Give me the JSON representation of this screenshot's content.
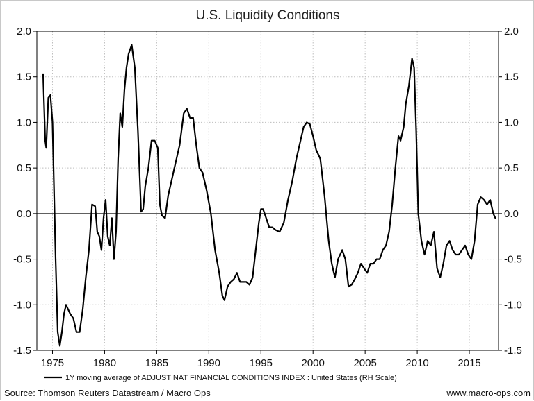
{
  "chart_data": {
    "type": "line",
    "title": "U.S. Liquidity Conditions",
    "ylim": [
      -1.5,
      2.0
    ],
    "xlim": [
      1973.5,
      2017.8
    ],
    "y_ticks": [
      "2.0",
      "1.5",
      "1.0",
      "0.5",
      "0.0",
      "-0.5",
      "-1.0",
      "-1.5"
    ],
    "y_tick_values": [
      2.0,
      1.5,
      1.0,
      0.5,
      0.0,
      -0.5,
      -1.0,
      -1.5
    ],
    "x_ticks": [
      "1975",
      "1980",
      "1985",
      "1990",
      "1995",
      "2000",
      "2005",
      "2010",
      "2015"
    ],
    "x_tick_values": [
      1975,
      1980,
      1985,
      1990,
      1995,
      2000,
      2005,
      2010,
      2015
    ],
    "grid": true,
    "legend_position": "bottom",
    "series": [
      {
        "name": "1Y moving average of ADJUST NAT FINANCIAL CONDITIONS INDEX : United States (RH Scale)",
        "color": "#000000",
        "x": [
          1974.1,
          1974.3,
          1974.4,
          1974.6,
          1974.8,
          1975.0,
          1975.1,
          1975.3,
          1975.5,
          1975.7,
          1975.9,
          1976.1,
          1976.3,
          1976.5,
          1976.7,
          1977.0,
          1977.3,
          1977.6,
          1977.9,
          1978.2,
          1978.5,
          1978.8,
          1979.1,
          1979.3,
          1979.5,
          1979.7,
          1979.9,
          1980.1,
          1980.3,
          1980.5,
          1980.7,
          1980.9,
          1981.1,
          1981.3,
          1981.5,
          1981.7,
          1981.9,
          1982.1,
          1982.3,
          1982.6,
          1982.9,
          1983.2,
          1983.5,
          1983.7,
          1983.9,
          1984.2,
          1984.5,
          1984.8,
          1985.1,
          1985.3,
          1985.5,
          1985.8,
          1986.1,
          1986.4,
          1986.8,
          1987.2,
          1987.6,
          1987.9,
          1988.2,
          1988.5,
          1988.8,
          1989.1,
          1989.4,
          1989.8,
          1990.2,
          1990.6,
          1991.0,
          1991.3,
          1991.5,
          1991.8,
          1992.1,
          1992.4,
          1992.7,
          1993.0,
          1993.3,
          1993.6,
          1993.9,
          1994.2,
          1994.5,
          1994.8,
          1995.0,
          1995.2,
          1995.5,
          1995.8,
          1996.1,
          1996.4,
          1996.8,
          1997.2,
          1997.6,
          1998.0,
          1998.4,
          1998.8,
          1999.1,
          1999.4,
          1999.7,
          2000.0,
          2000.3,
          2000.7,
          2001.1,
          2001.5,
          2001.8,
          2002.1,
          2002.4,
          2002.8,
          2003.1,
          2003.4,
          2003.7,
          2004.0,
          2004.3,
          2004.6,
          2004.9,
          2005.2,
          2005.5,
          2005.8,
          2006.1,
          2006.4,
          2006.7,
          2007.0,
          2007.3,
          2007.6,
          2007.9,
          2008.2,
          2008.4,
          2008.7,
          2008.9,
          2009.2,
          2009.5,
          2009.7,
          2009.9,
          2010.1,
          2010.4,
          2010.7,
          2011.0,
          2011.3,
          2011.6,
          2011.9,
          2012.2,
          2012.5,
          2012.8,
          2013.1,
          2013.4,
          2013.7,
          2014.0,
          2014.3,
          2014.6,
          2014.9,
          2015.2,
          2015.5,
          2015.8,
          2016.1,
          2016.4,
          2016.7,
          2017.0,
          2017.3,
          2017.5
        ],
        "values": [
          1.53,
          0.8,
          0.72,
          1.27,
          1.3,
          1.0,
          0.5,
          -0.5,
          -1.3,
          -1.45,
          -1.3,
          -1.1,
          -1.0,
          -1.05,
          -1.1,
          -1.15,
          -1.3,
          -1.3,
          -1.05,
          -0.7,
          -0.4,
          0.1,
          0.08,
          -0.2,
          -0.25,
          -0.4,
          -0.05,
          0.15,
          -0.25,
          -0.35,
          -0.05,
          -0.5,
          -0.2,
          0.6,
          1.1,
          0.95,
          1.35,
          1.6,
          1.75,
          1.85,
          1.6,
          0.9,
          0.02,
          0.05,
          0.3,
          0.5,
          0.8,
          0.8,
          0.72,
          0.1,
          -0.02,
          -0.05,
          0.2,
          0.35,
          0.55,
          0.75,
          1.1,
          1.15,
          1.05,
          1.05,
          0.75,
          0.5,
          0.45,
          0.25,
          0.0,
          -0.4,
          -0.65,
          -0.9,
          -0.95,
          -0.8,
          -0.75,
          -0.72,
          -0.65,
          -0.75,
          -0.75,
          -0.75,
          -0.78,
          -0.7,
          -0.4,
          -0.1,
          0.05,
          0.05,
          -0.05,
          -0.15,
          -0.15,
          -0.18,
          -0.2,
          -0.1,
          0.15,
          0.35,
          0.6,
          0.8,
          0.95,
          1.0,
          0.98,
          0.85,
          0.7,
          0.6,
          0.2,
          -0.3,
          -0.55,
          -0.7,
          -0.5,
          -0.4,
          -0.5,
          -0.8,
          -0.78,
          -0.72,
          -0.65,
          -0.55,
          -0.6,
          -0.65,
          -0.55,
          -0.55,
          -0.5,
          -0.5,
          -0.4,
          -0.35,
          -0.2,
          0.1,
          0.5,
          0.85,
          0.8,
          0.95,
          1.2,
          1.4,
          1.7,
          1.6,
          0.9,
          0.0,
          -0.3,
          -0.45,
          -0.3,
          -0.35,
          -0.2,
          -0.6,
          -0.7,
          -0.55,
          -0.35,
          -0.3,
          -0.4,
          -0.45,
          -0.45,
          -0.4,
          -0.35,
          -0.45,
          -0.5,
          -0.3,
          0.1,
          0.18,
          0.15,
          0.1,
          0.15,
          0.0,
          -0.05
        ]
      }
    ]
  },
  "legend": {
    "label": "1Y moving average of ADJUST NAT FINANCIAL CONDITIONS INDEX : United States (RH Scale)"
  },
  "footer": {
    "source": "Source: Thomson Reuters Datastream / Macro Ops",
    "website": "www.macro-ops.com"
  }
}
